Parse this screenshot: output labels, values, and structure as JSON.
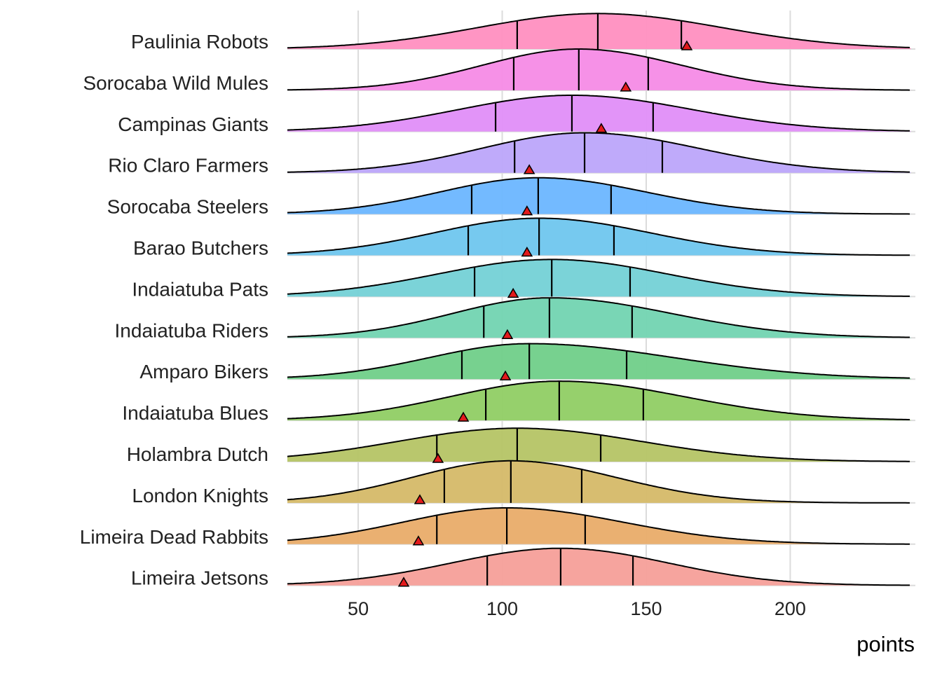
{
  "chart_data": {
    "type": "ridgeline",
    "title": "",
    "xlabel": "points",
    "ylabel": "",
    "xlim": [
      25.4,
      242
    ],
    "xticks": [
      50,
      100,
      150,
      200
    ],
    "xtick_labels": [
      "50",
      "100",
      "150",
      "200"
    ],
    "grid": "vertical major",
    "marker_color": "#E31A1C",
    "series": [
      {
        "name": "Paulinia Robots",
        "color": "#FF8FC0",
        "q1": 105.2,
        "median": 133.2,
        "q3": 162.2,
        "marker": 164.1,
        "peak": 0.86
      },
      {
        "name": "Sorocaba Wild Mules",
        "color": "#F68BE6",
        "q1": 104.0,
        "median": 126.6,
        "q3": 150.7,
        "marker": 142.9,
        "peak": 1.0
      },
      {
        "name": "Campinas Giants",
        "color": "#E08EF8",
        "q1": 97.7,
        "median": 124.2,
        "q3": 152.4,
        "marker": 134.4,
        "peak": 0.88
      },
      {
        "name": "Rio Claro Farmers",
        "color": "#BCA5FA",
        "q1": 104.3,
        "median": 128.6,
        "q3": 155.6,
        "marker": 109.4,
        "peak": 0.97
      },
      {
        "name": "Sorocaba Steelers",
        "color": "#6CB6FF",
        "q1": 89.4,
        "median": 112.5,
        "q3": 137.8,
        "marker": 108.6,
        "peak": 0.88
      },
      {
        "name": "Barao Butchers",
        "color": "#6FC6EE",
        "q1": 88.2,
        "median": 112.8,
        "q3": 138.8,
        "marker": 108.6,
        "peak": 0.9
      },
      {
        "name": "Indaiatuba Pats",
        "color": "#74D1D6",
        "q1": 90.4,
        "median": 117.2,
        "q3": 144.4,
        "marker": 103.8,
        "peak": 0.9
      },
      {
        "name": "Indaiatuba Riders",
        "color": "#72D4B1",
        "q1": 93.6,
        "median": 116.4,
        "q3": 145.1,
        "marker": 101.8,
        "peak": 0.97
      },
      {
        "name": "Amparo Bikers",
        "color": "#70CF89",
        "q1": 86.0,
        "median": 109.4,
        "q3": 143.2,
        "marker": 101.1,
        "peak": 0.86
      },
      {
        "name": "Indaiatuba Blues",
        "color": "#90CD64",
        "q1": 94.3,
        "median": 119.8,
        "q3": 149.0,
        "marker": 86.5,
        "peak": 0.95
      },
      {
        "name": "Holambra Dutch",
        "color": "#B5C465",
        "q1": 77.3,
        "median": 105.2,
        "q3": 134.2,
        "marker": 77.7,
        "peak": 0.81
      },
      {
        "name": "London Knights",
        "color": "#D5B968",
        "q1": 79.9,
        "median": 103.0,
        "q3": 127.6,
        "marker": 71.4,
        "peak": 1.02
      },
      {
        "name": "Limeira Dead Rabbits",
        "color": "#E9AC69",
        "q1": 77.3,
        "median": 101.6,
        "q3": 128.8,
        "marker": 70.9,
        "peak": 0.88
      },
      {
        "name": "Limeira Jetsons",
        "color": "#F59F99",
        "q1": 94.8,
        "median": 120.3,
        "q3": 145.4,
        "marker": 65.8,
        "peak": 0.9
      }
    ]
  }
}
